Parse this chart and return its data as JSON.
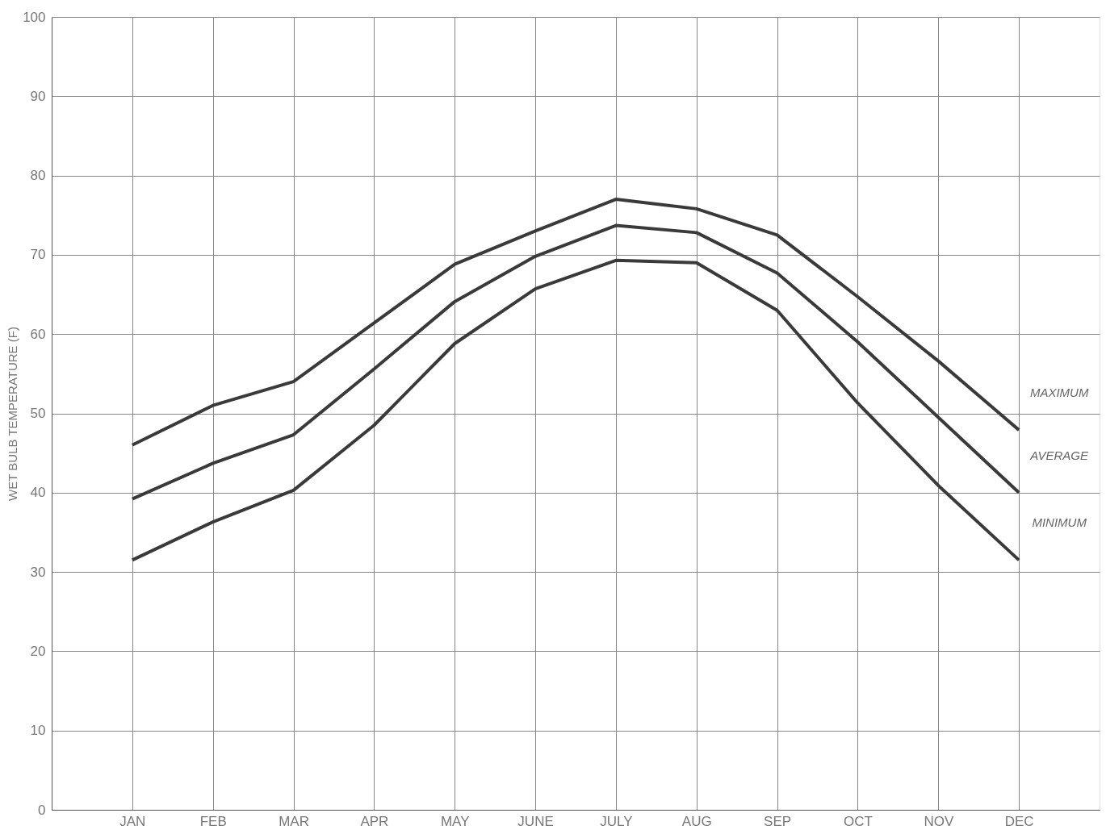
{
  "chart_data": {
    "type": "line",
    "ylabel": "WET BULB TEMPERATURE (F)",
    "categories": [
      "JAN",
      "FEB",
      "MAR",
      "APR",
      "MAY",
      "JUNE",
      "JULY",
      "AUG",
      "SEP",
      "OCT",
      "NOV",
      "DEC"
    ],
    "series": [
      {
        "name": "MAXIMUM",
        "color": "#3a3a3a",
        "values": [
          46,
          51,
          54,
          61.4,
          68.8,
          73,
          77,
          75.8,
          72.5,
          64.7,
          56.6,
          47.9
        ]
      },
      {
        "name": "AVERAGE",
        "color": "#3a3a3a",
        "values": [
          39.2,
          43.7,
          47.3,
          55.6,
          64.1,
          69.8,
          73.7,
          72.8,
          67.7,
          59,
          49.5,
          40
        ]
      },
      {
        "name": "MINIMUM",
        "color": "#3a3a3a",
        "values": [
          31.5,
          36.3,
          40.3,
          48.5,
          58.8,
          65.7,
          69.3,
          69,
          63,
          51.3,
          40.9,
          31.5
        ]
      }
    ],
    "ylim": [
      0,
      100
    ],
    "yticks": [
      0,
      10,
      20,
      30,
      40,
      50,
      60,
      70,
      80,
      90,
      100
    ],
    "grid": true,
    "marker": "none",
    "line_style": "solid"
  }
}
